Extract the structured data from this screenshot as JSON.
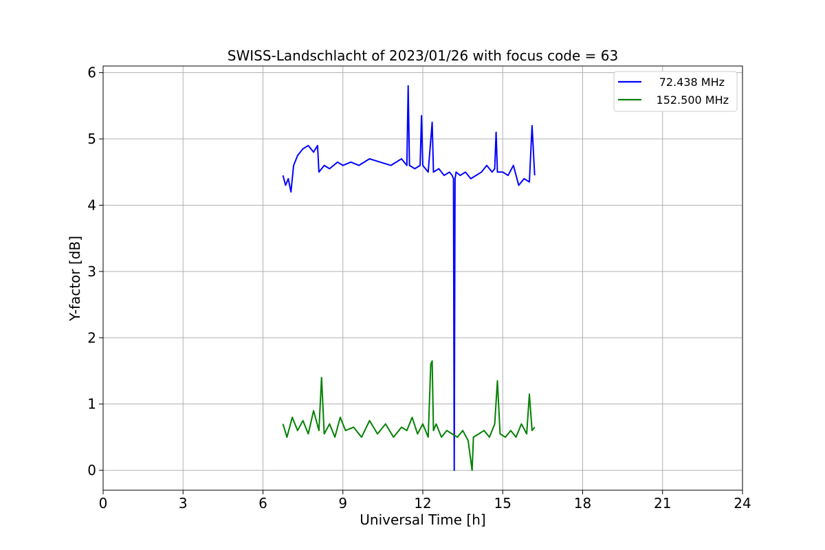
{
  "chart_data": {
    "type": "line",
    "title": "SWISS-Landschlacht of 2023/01/26 with focus code = 63",
    "xlabel": "Universal Time [h]",
    "ylabel": "Y-factor [dB]",
    "xlim": [
      0,
      24
    ],
    "ylim": [
      -0.3,
      6.1
    ],
    "xticks": [
      0,
      3,
      6,
      9,
      12,
      15,
      18,
      21,
      24
    ],
    "yticks": [
      0,
      1,
      2,
      3,
      4,
      5,
      6
    ],
    "grid": true,
    "legend_position": "top-right",
    "series": [
      {
        "name": " 72.438 MHz",
        "color": "#0000ff",
        "x": [
          6.75,
          6.85,
          6.95,
          7.05,
          7.15,
          7.3,
          7.5,
          7.7,
          7.9,
          8.05,
          8.1,
          8.3,
          8.5,
          8.8,
          9.0,
          9.3,
          9.6,
          10.0,
          10.4,
          10.8,
          11.2,
          11.4,
          11.45,
          11.5,
          11.7,
          11.9,
          11.95,
          12.0,
          12.2,
          12.35,
          12.4,
          12.6,
          12.8,
          13.0,
          13.1,
          13.15,
          13.18,
          13.21,
          13.25,
          13.4,
          13.6,
          13.8,
          14.0,
          14.2,
          14.4,
          14.6,
          14.7,
          14.75,
          14.8,
          15.0,
          15.2,
          15.4,
          15.6,
          15.8,
          16.0,
          16.1,
          16.2
        ],
        "y": [
          4.45,
          4.3,
          4.4,
          4.2,
          4.6,
          4.75,
          4.85,
          4.9,
          4.8,
          4.9,
          4.5,
          4.6,
          4.55,
          4.65,
          4.6,
          4.65,
          4.6,
          4.7,
          4.65,
          4.6,
          4.7,
          4.6,
          5.8,
          4.6,
          4.55,
          4.6,
          5.35,
          4.6,
          4.5,
          5.25,
          4.5,
          4.55,
          4.45,
          4.5,
          4.45,
          4.4,
          0.0,
          4.4,
          4.5,
          4.45,
          4.5,
          4.4,
          4.45,
          4.5,
          4.6,
          4.5,
          4.55,
          5.1,
          4.5,
          4.5,
          4.45,
          4.6,
          4.3,
          4.4,
          4.35,
          5.2,
          4.45
        ]
      },
      {
        "name": "152.500 MHz",
        "color": "#008000",
        "x": [
          6.75,
          6.9,
          7.1,
          7.3,
          7.5,
          7.7,
          7.9,
          8.1,
          8.2,
          8.3,
          8.5,
          8.7,
          8.9,
          9.1,
          9.4,
          9.7,
          10.0,
          10.3,
          10.6,
          10.9,
          11.2,
          11.4,
          11.6,
          11.8,
          12.0,
          12.2,
          12.3,
          12.35,
          12.4,
          12.5,
          12.7,
          12.9,
          13.1,
          13.3,
          13.5,
          13.7,
          13.85,
          13.9,
          14.1,
          14.3,
          14.5,
          14.7,
          14.8,
          14.9,
          15.1,
          15.3,
          15.5,
          15.7,
          15.9,
          16.0,
          16.1,
          16.2
        ],
        "y": [
          0.7,
          0.5,
          0.8,
          0.6,
          0.75,
          0.55,
          0.9,
          0.6,
          1.4,
          0.55,
          0.7,
          0.5,
          0.8,
          0.6,
          0.65,
          0.5,
          0.75,
          0.55,
          0.7,
          0.5,
          0.65,
          0.6,
          0.8,
          0.55,
          0.7,
          0.5,
          1.6,
          1.65,
          0.6,
          0.7,
          0.5,
          0.6,
          0.55,
          0.5,
          0.6,
          0.45,
          0.0,
          0.5,
          0.55,
          0.6,
          0.5,
          0.7,
          1.35,
          0.55,
          0.5,
          0.6,
          0.5,
          0.7,
          0.55,
          1.15,
          0.6,
          0.65
        ]
      }
    ]
  }
}
